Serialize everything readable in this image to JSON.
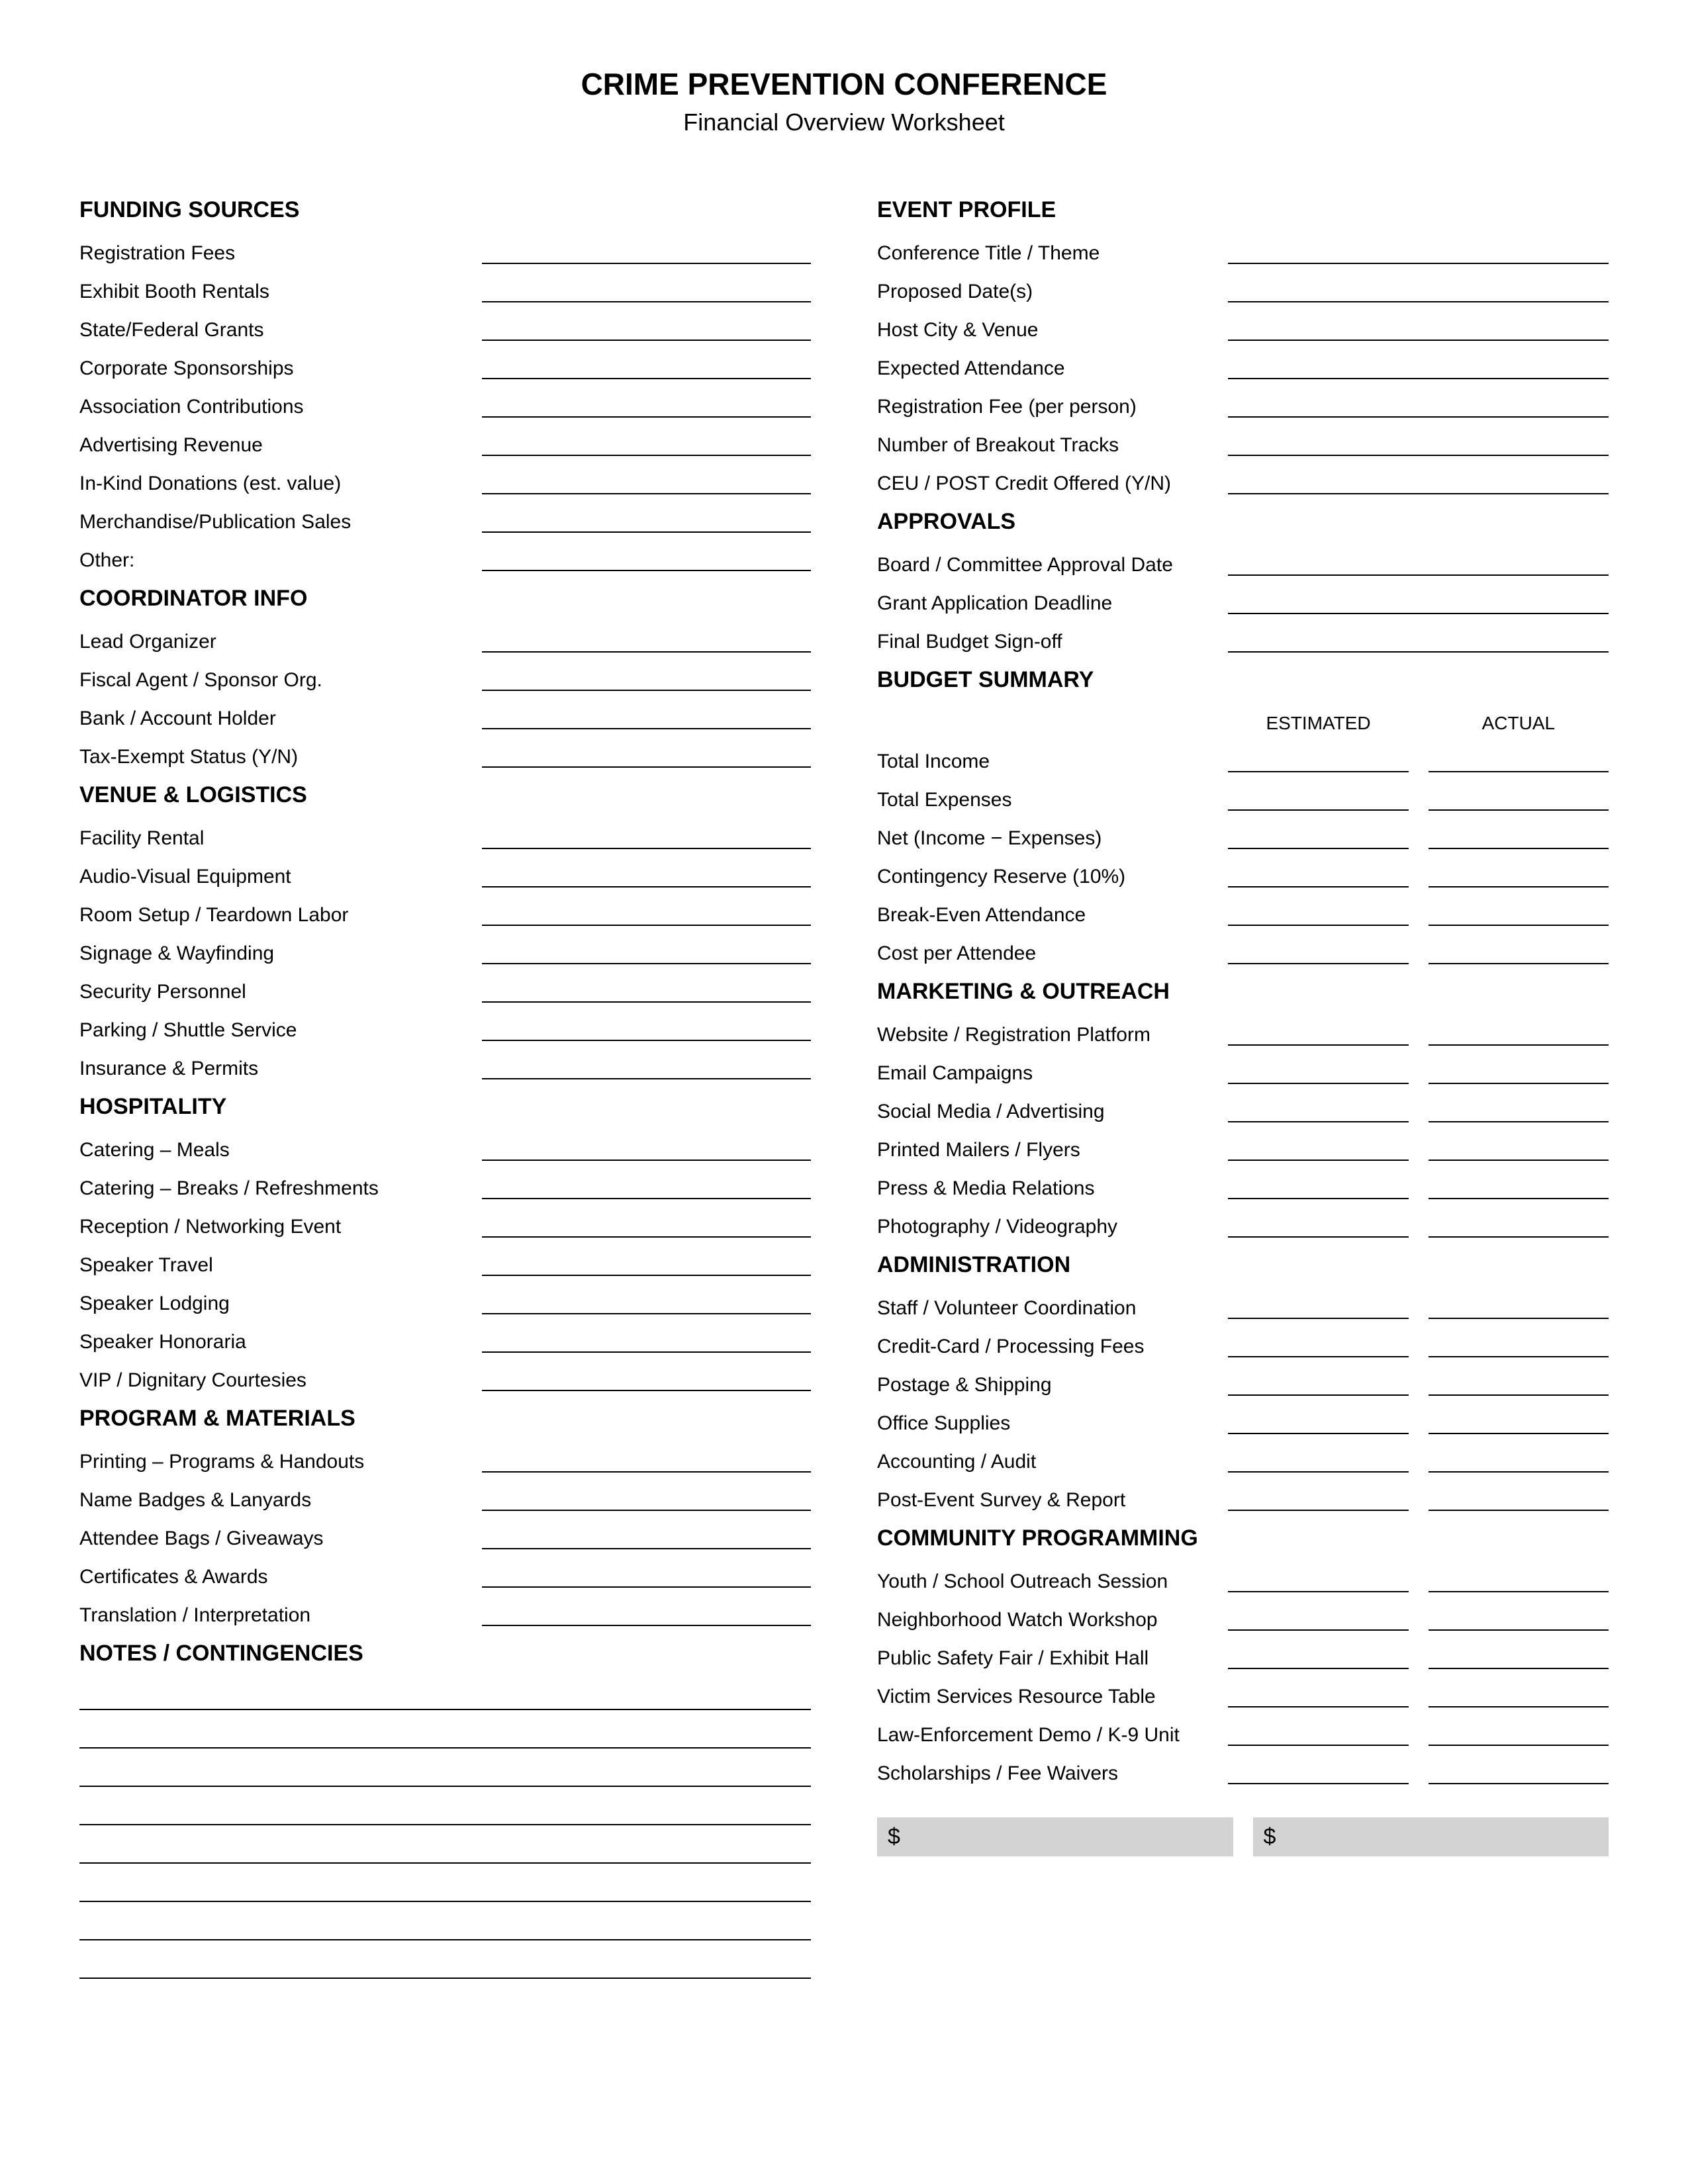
{
  "title": "CRIME PREVENTION CONFERENCE",
  "subtitle": "Financial Overview Worksheet",
  "left": {
    "funding": {
      "heading": "FUNDING SOURCES",
      "items": [
        "Registration Fees",
        "Exhibit Booth Rentals",
        "State/Federal Grants",
        "Corporate Sponsorships",
        "Association Contributions",
        "Advertising Revenue",
        "In-Kind Donations (est. value)",
        "Merchandise/Publication Sales",
        "Other:"
      ]
    },
    "coord": {
      "heading": "COORDINATOR INFO",
      "items": [
        "Lead Organizer",
        "Fiscal Agent / Sponsor Org.",
        "Bank / Account Holder",
        "Tax-Exempt Status (Y/N)"
      ]
    },
    "venue": {
      "heading": "VENUE & LOGISTICS",
      "items": [
        "Facility Rental",
        "Audio-Visual Equipment",
        "Room Setup / Teardown Labor",
        "Signage & Wayfinding",
        "Security Personnel",
        "Parking / Shuttle Service",
        "Insurance & Permits"
      ]
    },
    "hosp": {
      "heading": "HOSPITALITY",
      "items": [
        "Catering – Meals",
        "Catering – Breaks / Refreshments",
        "Reception / Networking Event",
        "Speaker Travel",
        "Speaker Lodging",
        "Speaker Honoraria",
        "VIP / Dignitary Courtesies"
      ]
    },
    "program": {
      "heading": "PROGRAM & MATERIALS",
      "items": [
        "Printing – Programs & Handouts",
        "Name Badges & Lanyards",
        "Attendee Bags / Giveaways",
        "Certificates & Awards",
        "Translation / Interpretation"
      ]
    },
    "notesHeading": "NOTES / CONTINGENCIES",
    "noteLines": 8
  },
  "right": {
    "event": {
      "heading": "EVENT PROFILE",
      "items": [
        "Conference Title / Theme",
        "Proposed Date(s)",
        "Host City & Venue",
        "Expected Attendance",
        "Registration Fee (per person)",
        "Number of Breakout Tracks",
        "CEU / POST Credit Offered (Y/N)"
      ]
    },
    "approvals": {
      "heading": "APPROVALS",
      "items": [
        "Board / Committee Approval Date",
        "Grant Application Deadline",
        "Final Budget Sign-off"
      ]
    },
    "summary": {
      "heading": "BUDGET SUMMARY",
      "colA": "ESTIMATED",
      "colB": "ACTUAL",
      "rows": [
        "Total Income",
        "Total Expenses",
        "Net (Income − Expenses)",
        "Contingency Reserve (10%)",
        "Break-Even Attendance",
        "Cost per Attendee"
      ]
    },
    "marketing": {
      "heading": "MARKETING & OUTREACH",
      "rows": [
        "Website / Registration Platform",
        "Email Campaigns",
        "Social Media / Advertising",
        "Printed Mailers / Flyers",
        "Press & Media Relations",
        "Photography / Videography"
      ]
    },
    "admin": {
      "heading": "ADMINISTRATION",
      "rows": [
        "Staff / Volunteer Coordination",
        "Credit-Card / Processing Fees",
        "Postage & Shipping",
        "Office Supplies",
        "Accounting / Audit",
        "Post-Event Survey & Report"
      ]
    },
    "community": {
      "heading": "COMMUNITY PROGRAMMING",
      "rows": [
        "Youth / School Outreach Session",
        "Neighborhood Watch Workshop",
        "Public Safety Fair / Exhibit Hall",
        "Victim Services Resource Table",
        "Law-Enforcement Demo / K-9 Unit",
        "Scholarships / Fee Waivers"
      ]
    },
    "totalLabel": "$"
  },
  "style": {
    "bg": "#ffffff",
    "line": "#000000",
    "totalBg": "#d3d3d3",
    "titleSize": 46,
    "subtitleSize": 36,
    "headingSize": 34,
    "rowSize": 30
  }
}
